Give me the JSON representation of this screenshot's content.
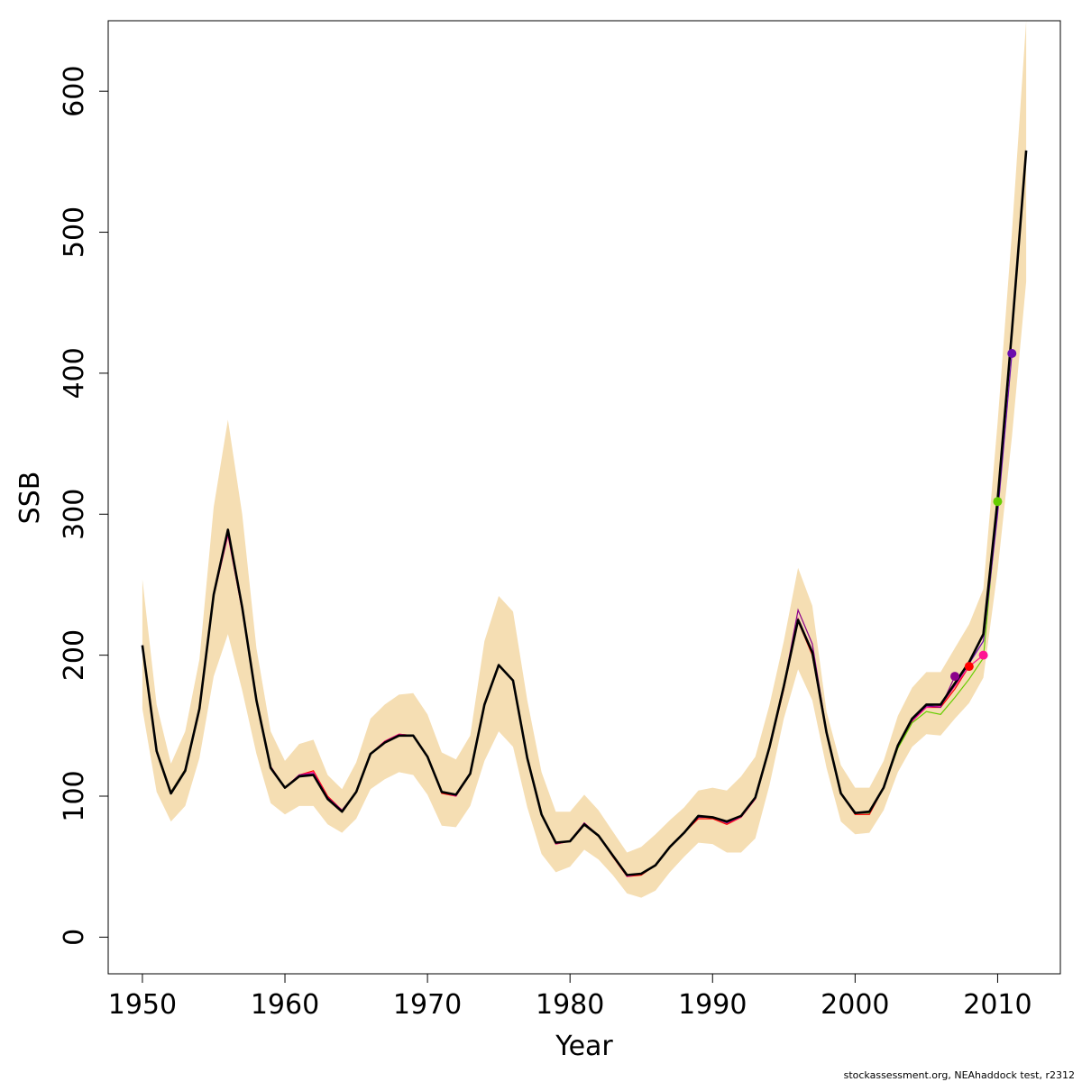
{
  "chart_data": {
    "type": "line",
    "title": "",
    "xlabel": "Year",
    "ylabel": "SSB",
    "xlim": [
      1947.6,
      2014.4
    ],
    "ylim": [
      -26,
      650
    ],
    "xticks": [
      1950,
      1960,
      1970,
      1980,
      1990,
      2000,
      2010
    ],
    "yticks": [
      0,
      100,
      200,
      300,
      400,
      500,
      600
    ],
    "grid": false,
    "legend": "none",
    "colors": {
      "band": "#f5deb3",
      "main": "#000000",
      "retro_red": "#ff0000",
      "retro_magenta": "#ff1493",
      "retro_purple": "#8b008b",
      "retro_green": "#66cd00",
      "retro_violet": "#6a0dad"
    },
    "x": [
      1950,
      1951,
      1952,
      1953,
      1954,
      1955,
      1956,
      1957,
      1958,
      1959,
      1960,
      1961,
      1962,
      1963,
      1964,
      1965,
      1966,
      1967,
      1968,
      1969,
      1970,
      1971,
      1972,
      1973,
      1974,
      1975,
      1976,
      1977,
      1978,
      1979,
      1980,
      1981,
      1982,
      1983,
      1984,
      1985,
      1986,
      1987,
      1988,
      1989,
      1990,
      1991,
      1992,
      1993,
      1994,
      1995,
      1996,
      1997,
      1998,
      1999,
      2000,
      2001,
      2002,
      2003,
      2004,
      2005,
      2006,
      2007,
      2008,
      2009,
      2010,
      2011,
      2012
    ],
    "upper": [
      254,
      165,
      123,
      146,
      197,
      305,
      367,
      300,
      205,
      146,
      125,
      137,
      140,
      115,
      105,
      124,
      155,
      165,
      172,
      173,
      158,
      131,
      126,
      143,
      210,
      242,
      231,
      168,
      117,
      89,
      89,
      101,
      90,
      75,
      60,
      64,
      73,
      83,
      92,
      104,
      106,
      104,
      114,
      128,
      165,
      210,
      262,
      235,
      160,
      122,
      106,
      106,
      125,
      157,
      177,
      188,
      188,
      205,
      222,
      247,
      365,
      500,
      650
    ],
    "lower": [
      162,
      103,
      82,
      93,
      127,
      185,
      215,
      175,
      130,
      95,
      87,
      93,
      93,
      80,
      74,
      84,
      105,
      112,
      117,
      115,
      101,
      79,
      78,
      93,
      125,
      146,
      135,
      92,
      59,
      46,
      50,
      62,
      55,
      44,
      31,
      28,
      33,
      46,
      57,
      67,
      66,
      60,
      60,
      70,
      108,
      155,
      190,
      168,
      120,
      82,
      73,
      74,
      90,
      117,
      135,
      144,
      143,
      155,
      166,
      184,
      260,
      355,
      465
    ],
    "ssb": [
      207,
      132,
      102,
      118,
      162,
      243,
      289,
      234,
      168,
      120,
      106,
      114,
      115,
      98,
      89,
      103,
      130,
      138,
      143,
      143,
      128,
      103,
      101,
      116,
      165,
      193,
      182,
      127,
      87,
      67,
      68,
      80,
      72,
      58,
      44,
      45,
      51,
      64,
      74,
      86,
      85,
      82,
      86,
      99,
      135,
      178,
      225,
      202,
      145,
      102,
      88,
      89,
      106,
      136,
      155,
      165,
      165,
      180,
      195,
      215,
      310,
      430,
      558
    ],
    "retros": [
      {
        "color": "#ff0000",
        "end_year": 2008,
        "end_point": 192,
        "y": [
          206,
          131,
          103,
          119,
          161,
          242,
          286,
          232,
          167,
          121,
          106,
          115,
          118,
          100,
          90,
          103,
          130,
          139,
          144,
          143,
          128,
          102,
          100,
          116,
          166,
          193,
          182,
          127,
          87,
          66,
          68,
          81,
          72,
          57,
          43,
          44,
          51,
          64,
          74,
          84,
          84,
          80,
          85,
          98,
          134,
          176,
          224,
          200,
          144,
          102,
          87,
          87,
          106,
          135,
          154,
          163,
          163,
          176,
          192
        ]
      },
      {
        "color": "#ff1493",
        "end_year": 2009,
        "end_point": 200,
        "y": [
          206,
          131,
          103,
          119,
          161,
          242,
          285,
          232,
          167,
          120,
          106,
          115,
          117,
          99,
          90,
          103,
          130,
          139,
          144,
          143,
          128,
          103,
          100,
          116,
          165,
          193,
          182,
          127,
          87,
          66,
          68,
          81,
          72,
          58,
          43,
          45,
          51,
          64,
          74,
          85,
          85,
          81,
          85,
          98,
          134,
          177,
          226,
          203,
          145,
          102,
          88,
          88,
          106,
          135,
          153,
          163,
          164,
          178,
          192,
          200
        ]
      },
      {
        "color": "#8b008b",
        "end_year": 2007,
        "end_point": 185,
        "y": [
          207,
          132,
          103,
          119,
          162,
          243,
          287,
          233,
          168,
          121,
          106,
          115,
          116,
          99,
          90,
          103,
          130,
          138,
          143,
          143,
          128,
          103,
          101,
          116,
          165,
          193,
          182,
          127,
          87,
          67,
          68,
          81,
          72,
          58,
          44,
          45,
          51,
          64,
          74,
          85,
          85,
          81,
          86,
          99,
          135,
          178,
          232,
          208,
          146,
          102,
          88,
          88,
          106,
          135,
          154,
          164,
          163,
          185
        ]
      },
      {
        "color": "#66cd00",
        "end_year": 2010,
        "end_point": 309,
        "y": [
          207,
          132,
          103,
          119,
          162,
          243,
          288,
          233,
          168,
          120,
          106,
          114,
          115,
          98,
          89,
          103,
          130,
          138,
          143,
          143,
          128,
          103,
          101,
          116,
          165,
          193,
          182,
          127,
          87,
          67,
          68,
          80,
          72,
          58,
          44,
          45,
          51,
          64,
          74,
          86,
          85,
          82,
          86,
          99,
          135,
          178,
          225,
          202,
          145,
          102,
          88,
          88,
          106,
          134,
          152,
          160,
          158,
          170,
          183,
          198,
          309
        ]
      },
      {
        "color": "#6a0dad",
        "end_year": 2011,
        "end_point": 414,
        "y": [
          207,
          132,
          102,
          118,
          162,
          243,
          289,
          234,
          168,
          120,
          106,
          114,
          115,
          98,
          89,
          103,
          130,
          138,
          143,
          143,
          128,
          103,
          101,
          116,
          165,
          193,
          182,
          127,
          87,
          67,
          68,
          80,
          72,
          58,
          44,
          45,
          51,
          64,
          74,
          86,
          85,
          82,
          86,
          99,
          135,
          178,
          225,
          202,
          145,
          102,
          88,
          89,
          106,
          136,
          155,
          164,
          165,
          179,
          194,
          210,
          300,
          414
        ]
      }
    ]
  },
  "footer": "stockassessment.org, NEAhaddock  test, r2312"
}
